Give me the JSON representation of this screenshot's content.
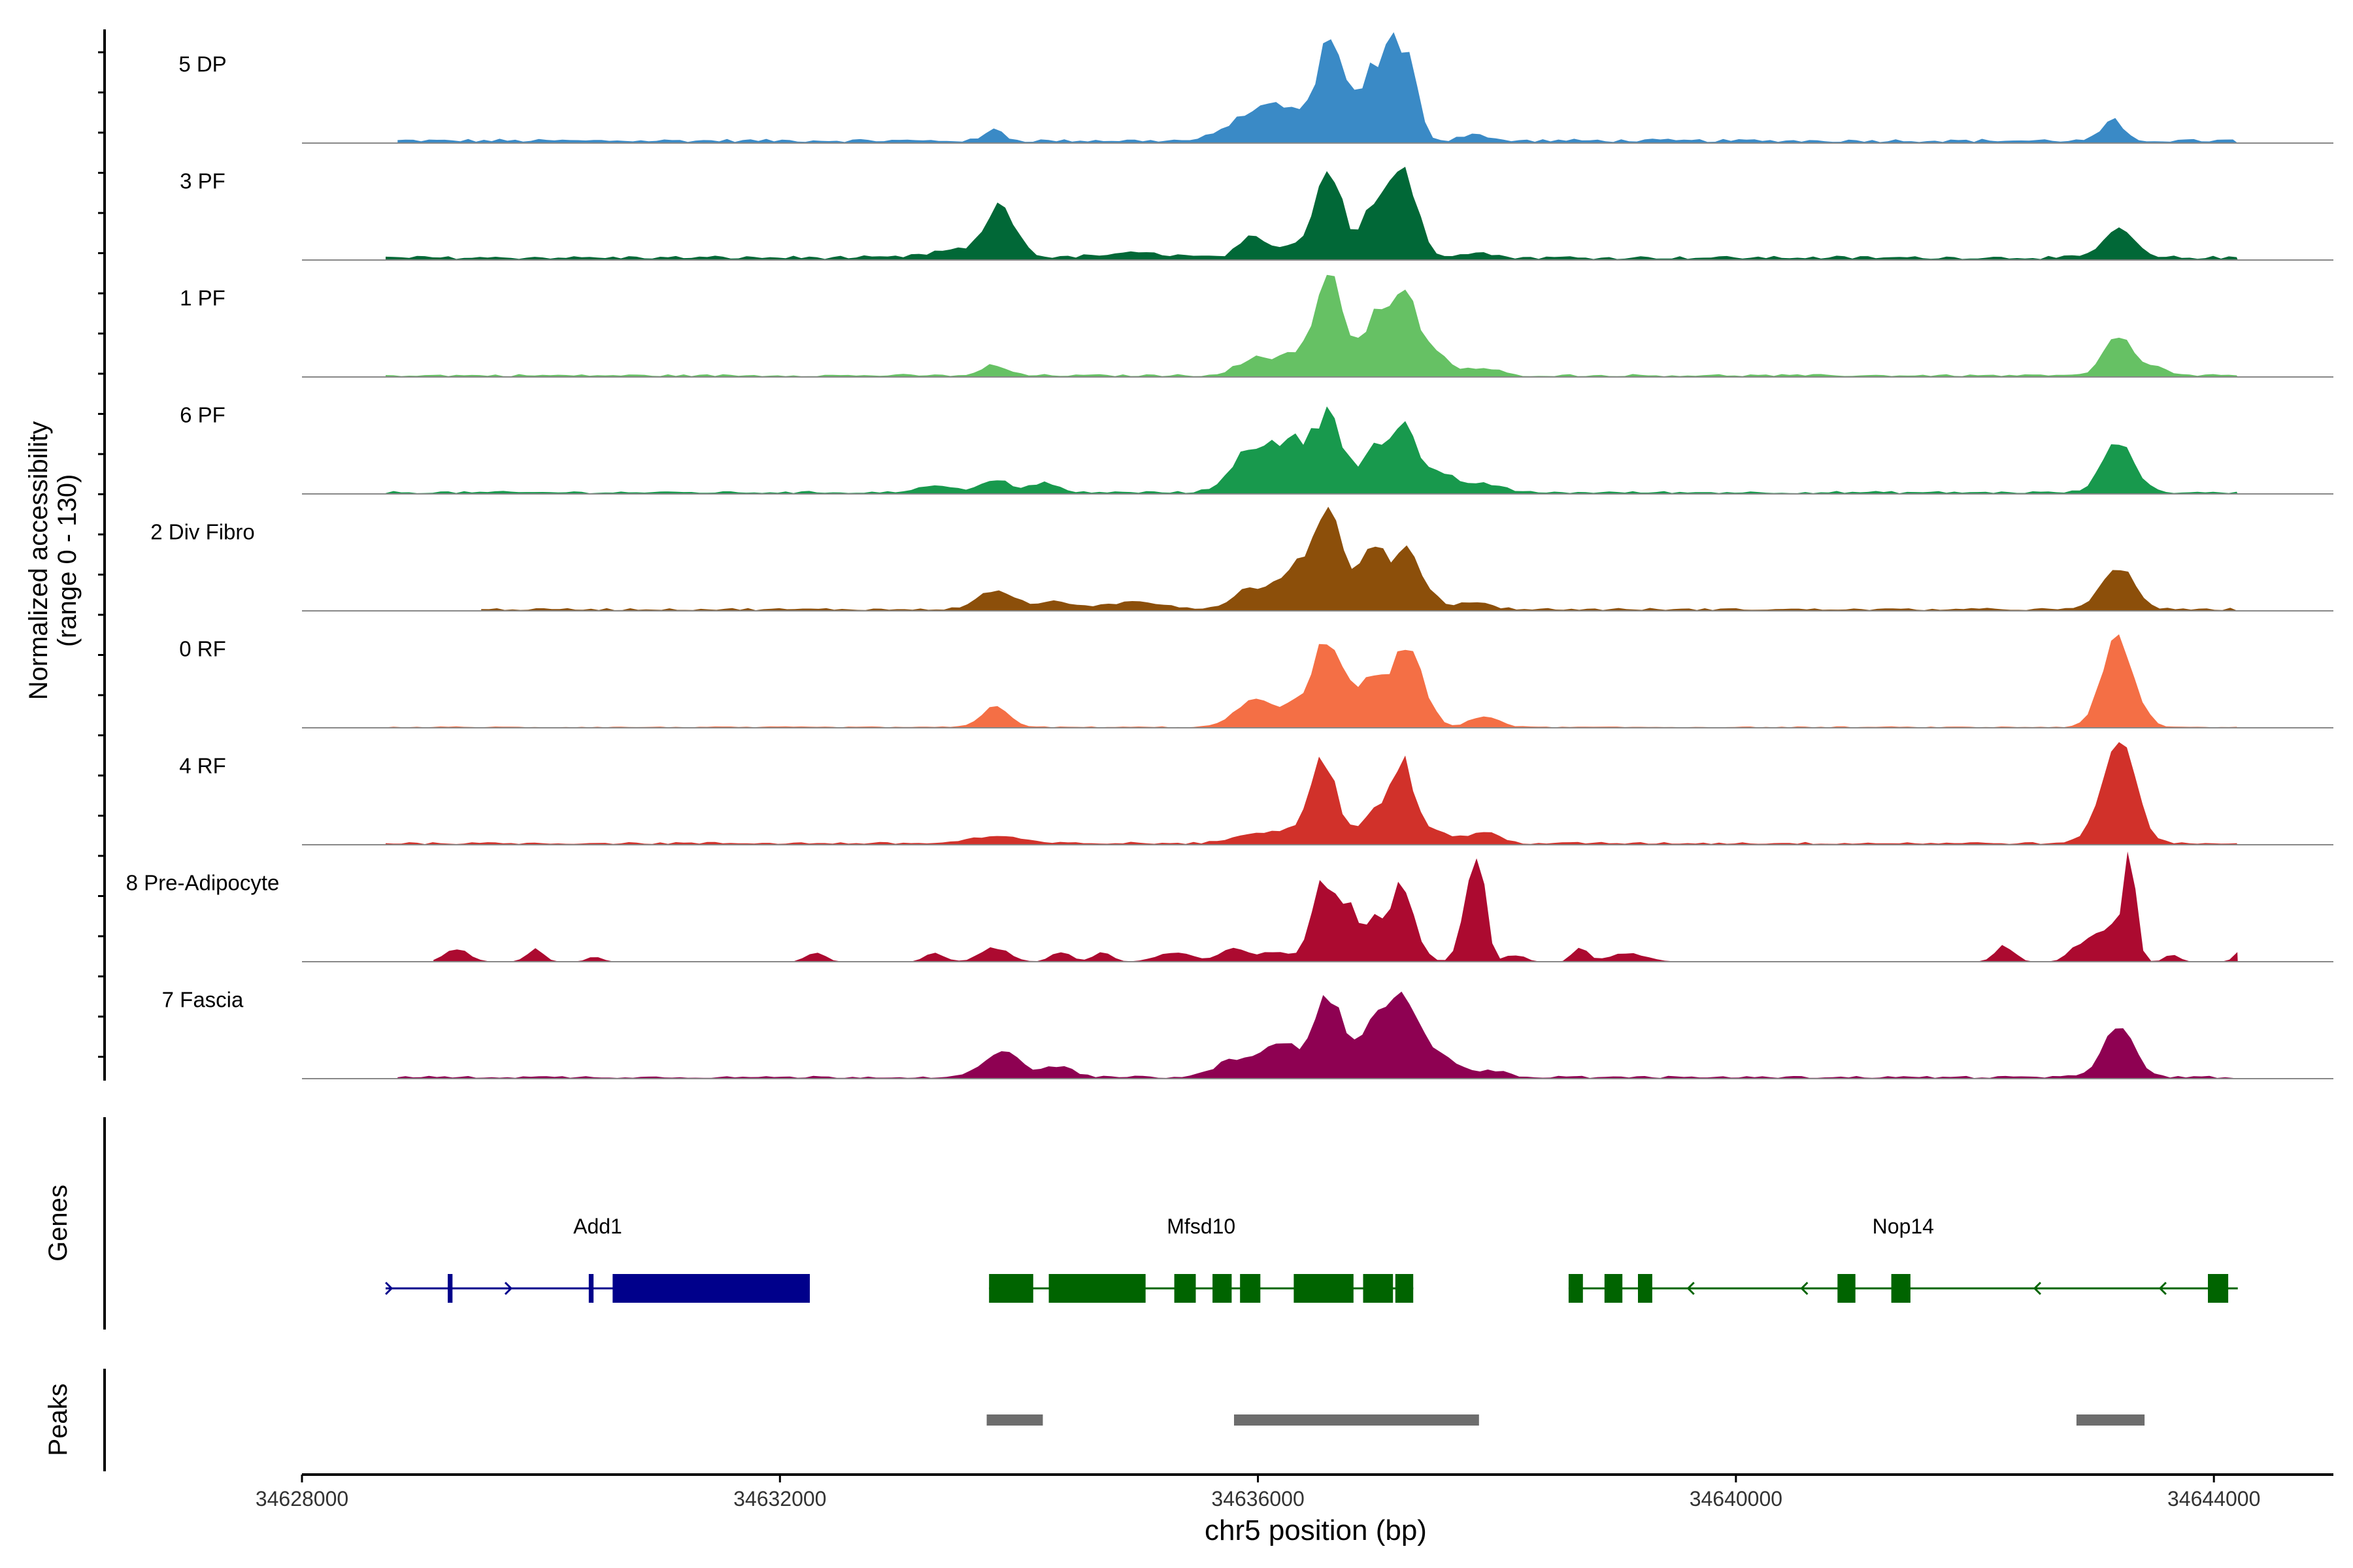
{
  "chart_data": {
    "type": "area",
    "title": "",
    "ylabel_line1": "Normalized accessibility",
    "ylabel_line2": "(range 0 - 130)",
    "xlabel": "chr5 position (bp)",
    "xlim": [
      34628000,
      34645000
    ],
    "ylim": [
      0,
      130
    ],
    "x_ticks": [
      34628000,
      34632000,
      34636000,
      34640000,
      34644000
    ],
    "x_tick_labels": [
      "34628000",
      "34632000",
      "34636000",
      "34640000",
      "34644000"
    ],
    "tracks": [
      {
        "name": "5 DP",
        "color": "#3a8ac6",
        "range": [
          34628800,
          34644200
        ],
        "baseline": 3,
        "peaks": [
          [
            34633800,
            14,
            70
          ],
          [
            34635800,
            14,
            150
          ],
          [
            34636000,
            22,
            140
          ],
          [
            34636250,
            30,
            160
          ],
          [
            34636600,
            110,
            110
          ],
          [
            34636950,
            78,
            110
          ],
          [
            34637150,
            95,
            80
          ],
          [
            34637300,
            65,
            70
          ],
          [
            34637800,
            8,
            100
          ],
          [
            34643150,
            22,
            90
          ]
        ]
      },
      {
        "name": "3 PF",
        "color": "#016837",
        "range": [
          34628700,
          34644200
        ],
        "baseline": 3,
        "peaks": [
          [
            34633450,
            8,
            200
          ],
          [
            34633850,
            55,
            130
          ],
          [
            34635000,
            5,
            300
          ],
          [
            34635950,
            22,
            110
          ],
          [
            34636300,
            16,
            120
          ],
          [
            34636600,
            100,
            110
          ],
          [
            34636950,
            50,
            90
          ],
          [
            34637200,
            105,
            120
          ],
          [
            34637800,
            6,
            150
          ],
          [
            34643200,
            36,
            120
          ]
        ]
      },
      {
        "name": "1 PF",
        "color": "#66c164",
        "range": [
          34628700,
          34644200
        ],
        "baseline": 2,
        "peaks": [
          [
            34633800,
            12,
            100
          ],
          [
            34635950,
            16,
            140
          ],
          [
            34636300,
            22,
            180
          ],
          [
            34636600,
            105,
            120
          ],
          [
            34636950,
            48,
            110
          ],
          [
            34637200,
            92,
            130
          ],
          [
            34637500,
            20,
            130
          ],
          [
            34637900,
            8,
            120
          ],
          [
            34643200,
            48,
            110
          ],
          [
            34643500,
            10,
            90
          ]
        ]
      },
      {
        "name": "6 PF",
        "color": "#18994d",
        "range": [
          34628700,
          34644200
        ],
        "baseline": 2,
        "peaks": [
          [
            34633300,
            8,
            150
          ],
          [
            34633800,
            16,
            110
          ],
          [
            34634200,
            10,
            120
          ],
          [
            34635950,
            52,
            160
          ],
          [
            34636300,
            55,
            140
          ],
          [
            34636600,
            90,
            110
          ],
          [
            34636950,
            45,
            100
          ],
          [
            34637200,
            72,
            110
          ],
          [
            34637500,
            22,
            150
          ],
          [
            34637900,
            10,
            140
          ],
          [
            34643200,
            55,
            130
          ]
        ]
      },
      {
        "name": "2 Div Fibro",
        "color": "#8c4f0a",
        "range": [
          34629500,
          34644200
        ],
        "baseline": 2,
        "peaks": [
          [
            34633800,
            22,
            150
          ],
          [
            34634300,
            9,
            140
          ],
          [
            34635000,
            8,
            250
          ],
          [
            34635900,
            20,
            130
          ],
          [
            34636150,
            18,
            130
          ],
          [
            34636350,
            42,
            110
          ],
          [
            34636600,
            105,
            110
          ],
          [
            34636950,
            58,
            120
          ],
          [
            34637250,
            62,
            140
          ],
          [
            34637800,
            8,
            150
          ],
          [
            34643200,
            50,
            130
          ]
        ]
      },
      {
        "name": "0 RF",
        "color": "#f46f45",
        "range": [
          34628700,
          34644200
        ],
        "baseline": 1,
        "peaks": [
          [
            34633800,
            26,
            110
          ],
          [
            34635950,
            28,
            150
          ],
          [
            34636300,
            22,
            150
          ],
          [
            34636600,
            100,
            120
          ],
          [
            34636950,
            48,
            110
          ],
          [
            34637250,
            92,
            130
          ],
          [
            34637900,
            12,
            120
          ],
          [
            34643200,
            105,
            130
          ]
        ]
      },
      {
        "name": "4 RF",
        "color": "#d1312a",
        "range": [
          34628700,
          34644200
        ],
        "baseline": 2,
        "peaks": [
          [
            34633800,
            8,
            200
          ],
          [
            34635950,
            10,
            160
          ],
          [
            34636300,
            14,
            150
          ],
          [
            34636550,
            90,
            110
          ],
          [
            34636950,
            32,
            110
          ],
          [
            34637200,
            88,
            110
          ],
          [
            34637500,
            12,
            150
          ],
          [
            34637900,
            12,
            120
          ],
          [
            34643200,
            115,
            140
          ]
        ]
      },
      {
        "name": "8 Pre-Adipocyte",
        "color": "#ac0a30",
        "range": [
          34629100,
          34644200
        ],
        "baseline": 0,
        "peaks": [
          [
            34629300,
            14,
            100
          ],
          [
            34629950,
            14,
            70
          ],
          [
            34630450,
            6,
            60
          ],
          [
            34632300,
            10,
            80
          ],
          [
            34633300,
            10,
            80
          ],
          [
            34633800,
            16,
            120
          ],
          [
            34634350,
            12,
            80
          ],
          [
            34634700,
            10,
            80
          ],
          [
            34635300,
            10,
            150
          ],
          [
            34635800,
            14,
            120
          ],
          [
            34636150,
            12,
            120
          ],
          [
            34636550,
            88,
            100
          ],
          [
            34636750,
            55,
            70
          ],
          [
            34636950,
            45,
            80
          ],
          [
            34637200,
            85,
            110
          ],
          [
            34637750,
            55,
            70
          ],
          [
            34637850,
            100,
            60
          ],
          [
            34638150,
            8,
            80
          ],
          [
            34638700,
            18,
            60
          ],
          [
            34639100,
            10,
            150
          ],
          [
            34642250,
            18,
            80
          ],
          [
            34642900,
            20,
            100
          ],
          [
            34643150,
            40,
            110
          ],
          [
            34643300,
            110,
            50
          ],
          [
            34643650,
            8,
            60
          ],
          [
            34644200,
            12,
            40
          ]
        ]
      },
      {
        "name": "7 Fascia",
        "color": "#8e0152",
        "range": [
          34628800,
          34644200
        ],
        "baseline": 2,
        "peaks": [
          [
            34633850,
            30,
            140
          ],
          [
            34634300,
            12,
            150
          ],
          [
            34635800,
            20,
            150
          ],
          [
            34636200,
            40,
            150
          ],
          [
            34636600,
            92,
            120
          ],
          [
            34636950,
            45,
            110
          ],
          [
            34637200,
            88,
            130
          ],
          [
            34637500,
            25,
            160
          ],
          [
            34637950,
            8,
            120
          ],
          [
            34643200,
            55,
            130
          ]
        ]
      }
    ],
    "genes_label": "Genes",
    "genes": [
      {
        "name": "Add1",
        "color": "#00008b",
        "strand": "+",
        "start": 34628700,
        "end": 34632250,
        "exons": [
          [
            34629220,
            34629260
          ],
          [
            34630400,
            34630440
          ],
          [
            34630600,
            34632250
          ]
        ],
        "arrows": [
          34628750,
          34629750
        ]
      },
      {
        "name": "Mfsd10",
        "color": "#006400",
        "strand": "",
        "start": 34633750,
        "end": 34637300,
        "exons": [
          [
            34633750,
            34634120
          ],
          [
            34634250,
            34635060
          ],
          [
            34635300,
            34635480
          ],
          [
            34635620,
            34635780
          ],
          [
            34635850,
            34636020
          ],
          [
            34636300,
            34636800
          ],
          [
            34636880,
            34637130
          ],
          [
            34637150,
            34637300
          ]
        ],
        "arrows": []
      },
      {
        "name": "Nop14",
        "color": "#006400",
        "strand": "-",
        "start": 34638600,
        "end": 34644200,
        "exons": [
          [
            34638600,
            34638720
          ],
          [
            34638900,
            34639050
          ],
          [
            34639180,
            34639300
          ],
          [
            34640850,
            34641000
          ],
          [
            34641300,
            34641460
          ],
          [
            34643950,
            34644120
          ]
        ],
        "arrows": [
          34639600,
          34640550,
          34642500,
          34643550
        ]
      }
    ],
    "peaks_label": "Peaks",
    "peak_regions": [
      [
        34633730,
        34634200
      ],
      [
        34635800,
        34637850
      ],
      [
        34642850,
        34643420
      ]
    ]
  }
}
